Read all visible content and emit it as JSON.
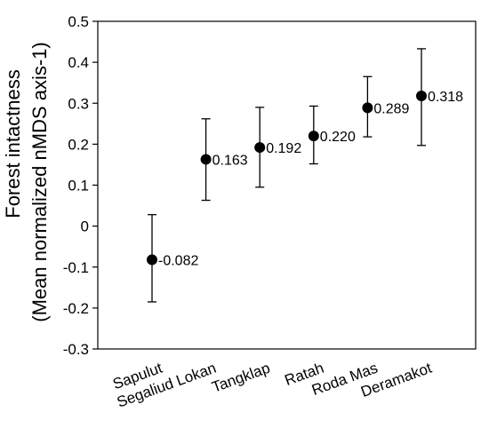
{
  "chart_data": {
    "type": "scatter",
    "categories": [
      "Sapulut",
      "Segaliud Lokan",
      "Tangklap",
      "Ratah",
      "Roda Mas",
      "Deramakot"
    ],
    "values": [
      -0.082,
      0.163,
      0.192,
      0.22,
      0.289,
      0.318
    ],
    "data_labels": [
      "-0.082",
      "0.163",
      "0.192",
      "0.220",
      "0.289",
      "0.318"
    ],
    "error_low": [
      -0.185,
      0.063,
      0.095,
      0.152,
      0.218,
      0.197
    ],
    "error_high": [
      0.028,
      0.262,
      0.29,
      0.293,
      0.365,
      0.433
    ],
    "ylabel_line1": "Forest intactness",
    "ylabel_line2": "(Mean normalized nMDS axis-1)",
    "ylim": [
      -0.3,
      0.5
    ],
    "yticks": [
      "-0.3",
      "-0.2",
      "-0.1",
      "0",
      "0.1",
      "0.2",
      "0.3",
      "0.4",
      "0.5"
    ],
    "grid": false,
    "marker_color": "#000000"
  }
}
